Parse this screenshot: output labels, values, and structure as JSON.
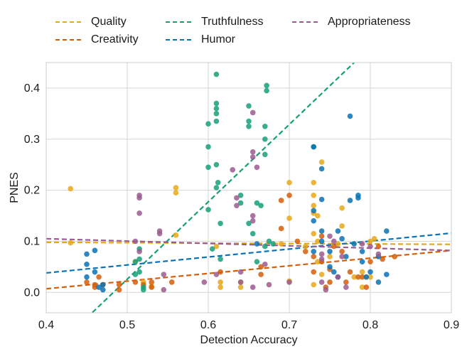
{
  "chart_data": {
    "type": "scatter",
    "xlabel": "Detection Accuracy",
    "ylabel": "PNES",
    "xlim": [
      0.4,
      0.9
    ],
    "ylim": [
      -0.04,
      0.45
    ],
    "xticks": [
      "0.4",
      "0.5",
      "0.6",
      "0.7",
      "0.8",
      "0.9"
    ],
    "xtick_values": [
      0.4,
      0.5,
      0.6,
      0.7,
      0.8,
      0.9
    ],
    "yticks": [
      "0.0",
      "0.1",
      "0.2",
      "0.3",
      "0.4"
    ],
    "ytick_values": [
      0.0,
      0.1,
      0.2,
      0.3,
      0.4
    ],
    "grid": true,
    "legend_position": "top",
    "series": [
      {
        "name": "Quality",
        "color": "#E6A817",
        "trend": [
          [
            0.4,
            0.098
          ],
          [
            0.9,
            0.094
          ]
        ],
        "points": [
          [
            0.43,
            0.203
          ],
          [
            0.43,
            0.097
          ],
          [
            0.51,
            0.06
          ],
          [
            0.52,
            0.02
          ],
          [
            0.53,
            0.012
          ],
          [
            0.56,
            0.205
          ],
          [
            0.56,
            0.195
          ],
          [
            0.56,
            0.112
          ],
          [
            0.61,
            0.09
          ],
          [
            0.615,
            0.02
          ],
          [
            0.615,
            0.01
          ],
          [
            0.64,
            0.02
          ],
          [
            0.64,
            0.01
          ],
          [
            0.69,
            0.095
          ],
          [
            0.7,
            0.215
          ],
          [
            0.7,
            0.145
          ],
          [
            0.7,
            0.022
          ],
          [
            0.72,
            0.09
          ],
          [
            0.73,
            0.115
          ],
          [
            0.73,
            0.215
          ],
          [
            0.73,
            0.19
          ],
          [
            0.73,
            0.17
          ],
          [
            0.73,
            0.155
          ],
          [
            0.735,
            0.15
          ],
          [
            0.735,
            0.1
          ],
          [
            0.735,
            0.06
          ],
          [
            0.74,
            0.255
          ],
          [
            0.74,
            0.035
          ],
          [
            0.75,
            0.07
          ],
          [
            0.76,
            0.095
          ],
          [
            0.765,
            0.165
          ],
          [
            0.765,
            0.13
          ],
          [
            0.78,
            0.03
          ],
          [
            0.79,
            0.04
          ],
          [
            0.795,
            0.03
          ],
          [
            0.79,
            0.01
          ],
          [
            0.8,
            0.03
          ],
          [
            0.8,
            0.1
          ],
          [
            0.805,
            0.105
          ],
          [
            0.73,
            0.015
          ]
        ]
      },
      {
        "name": "Creativity",
        "color": "#D45E0A",
        "trend": [
          [
            0.4,
            0.007
          ],
          [
            0.9,
            0.082
          ]
        ],
        "points": [
          [
            0.45,
            0.02
          ],
          [
            0.46,
            0.015
          ],
          [
            0.46,
            0.01
          ],
          [
            0.465,
            0.03
          ],
          [
            0.47,
            0.015
          ],
          [
            0.49,
            0.015
          ],
          [
            0.49,
            0.005
          ],
          [
            0.51,
            0.02
          ],
          [
            0.52,
            0.015
          ],
          [
            0.53,
            0.02
          ],
          [
            0.53,
            0.01
          ],
          [
            0.555,
            0.02
          ],
          [
            0.615,
            0.04
          ],
          [
            0.665,
            0.05
          ],
          [
            0.665,
            0.035
          ],
          [
            0.7,
            0.19
          ],
          [
            0.69,
            0.18
          ],
          [
            0.69,
            0.125
          ],
          [
            0.71,
            0.1
          ],
          [
            0.72,
            0.08
          ],
          [
            0.73,
            0.07
          ],
          [
            0.73,
            0.04
          ],
          [
            0.74,
            0.11
          ],
          [
            0.74,
            0.06
          ],
          [
            0.745,
            0.01
          ],
          [
            0.75,
            0.02
          ],
          [
            0.755,
            0.09
          ],
          [
            0.75,
            0.045
          ],
          [
            0.76,
            0.03
          ],
          [
            0.765,
            0.08
          ],
          [
            0.77,
            0.02
          ],
          [
            0.775,
            0.04
          ],
          [
            0.785,
            0.03
          ],
          [
            0.79,
            0.03
          ],
          [
            0.795,
            0.01
          ],
          [
            0.8,
            0.06
          ],
          [
            0.81,
            0.09
          ],
          [
            0.815,
            0.065
          ],
          [
            0.83,
            0.07
          ]
        ]
      },
      {
        "name": "Truthfulness",
        "color": "#15A07A",
        "trend": [
          [
            0.45,
            -0.05
          ],
          [
            0.78,
            0.45
          ]
        ],
        "points": [
          [
            0.51,
            0.06
          ],
          [
            0.51,
            0.035
          ],
          [
            0.515,
            0.085
          ],
          [
            0.515,
            0.065
          ],
          [
            0.515,
            0.04
          ],
          [
            0.52,
            0.01
          ],
          [
            0.52,
            0.005
          ],
          [
            0.6,
            0.285
          ],
          [
            0.6,
            0.245
          ],
          [
            0.6,
            0.162
          ],
          [
            0.6,
            0.33
          ],
          [
            0.605,
            0.085
          ],
          [
            0.61,
            0.25
          ],
          [
            0.61,
            0.205
          ],
          [
            0.61,
            0.35
          ],
          [
            0.61,
            0.335
          ],
          [
            0.61,
            0.36
          ],
          [
            0.61,
            0.37
          ],
          [
            0.61,
            0.427
          ],
          [
            0.612,
            0.215
          ],
          [
            0.615,
            0.135
          ],
          [
            0.615,
            0.065
          ],
          [
            0.64,
            0.19
          ],
          [
            0.64,
            0.175
          ],
          [
            0.65,
            0.365
          ],
          [
            0.65,
            0.335
          ],
          [
            0.65,
            0.325
          ],
          [
            0.66,
            0.175
          ],
          [
            0.665,
            0.17
          ],
          [
            0.67,
            0.3
          ],
          [
            0.67,
            0.27
          ],
          [
            0.67,
            0.325
          ],
          [
            0.672,
            0.405
          ],
          [
            0.672,
            0.395
          ],
          [
            0.675,
            0.1
          ],
          [
            0.68,
            0.095
          ],
          [
            0.73,
            0.285
          ],
          [
            0.65,
            0.135
          ],
          [
            0.655,
            0.115
          ],
          [
            0.67,
            0.09
          ],
          [
            0.66,
            0.06
          ]
        ]
      },
      {
        "name": "Humor",
        "color": "#0A72B5",
        "trend": [
          [
            0.4,
            0.038
          ],
          [
            0.9,
            0.116
          ]
        ],
        "points": [
          [
            0.45,
            0.075
          ],
          [
            0.45,
            0.055
          ],
          [
            0.45,
            0.03
          ],
          [
            0.46,
            0.082
          ],
          [
            0.46,
            0.04
          ],
          [
            0.465,
            0.01
          ],
          [
            0.47,
            0.005
          ],
          [
            0.47,
            0.015
          ],
          [
            0.66,
            0.095
          ],
          [
            0.73,
            0.285
          ],
          [
            0.73,
            0.16
          ],
          [
            0.73,
            0.14
          ],
          [
            0.73,
            0.08
          ],
          [
            0.74,
            0.242
          ],
          [
            0.74,
            0.182
          ],
          [
            0.74,
            0.12
          ],
          [
            0.74,
            0.1
          ],
          [
            0.75,
            0.08
          ],
          [
            0.75,
            0.05
          ],
          [
            0.755,
            0.04
          ],
          [
            0.76,
            0.03
          ],
          [
            0.76,
            0.12
          ],
          [
            0.765,
            0.105
          ],
          [
            0.77,
            0.07
          ],
          [
            0.775,
            0.345
          ],
          [
            0.775,
            0.18
          ],
          [
            0.78,
            0.095
          ],
          [
            0.785,
            0.19
          ],
          [
            0.785,
            0.185
          ],
          [
            0.79,
            0.08
          ],
          [
            0.79,
            0.06
          ],
          [
            0.795,
            0.03
          ],
          [
            0.8,
            0.04
          ],
          [
            0.81,
            0.07
          ],
          [
            0.81,
            0.02
          ],
          [
            0.82,
            0.12
          ],
          [
            0.82,
            0.035
          ]
        ]
      },
      {
        "name": "Appropriateness",
        "color": "#9B5B8F",
        "trend": [
          [
            0.4,
            0.105
          ],
          [
            0.9,
            0.082
          ]
        ],
        "points": [
          [
            0.51,
            0.1
          ],
          [
            0.515,
            0.19
          ],
          [
            0.515,
            0.185
          ],
          [
            0.515,
            0.155
          ],
          [
            0.515,
            0.08
          ],
          [
            0.54,
            0.115
          ],
          [
            0.54,
            0.12
          ],
          [
            0.545,
            0.035
          ],
          [
            0.545,
            0.005
          ],
          [
            0.595,
            0.02
          ],
          [
            0.61,
            0.035
          ],
          [
            0.63,
            0.24
          ],
          [
            0.635,
            0.185
          ],
          [
            0.635,
            0.17
          ],
          [
            0.64,
            0.04
          ],
          [
            0.64,
            0.02
          ],
          [
            0.655,
            0.352
          ],
          [
            0.655,
            0.275
          ],
          [
            0.655,
            0.265
          ],
          [
            0.655,
            0.15
          ],
          [
            0.655,
            0.14
          ],
          [
            0.655,
            0.01
          ],
          [
            0.66,
            0.245
          ],
          [
            0.67,
            0.055
          ],
          [
            0.675,
            0.015
          ],
          [
            0.7,
            0.02
          ],
          [
            0.74,
            0.075
          ],
          [
            0.74,
            0.065
          ],
          [
            0.74,
            0.02
          ],
          [
            0.745,
            0.005
          ],
          [
            0.75,
            0.11
          ],
          [
            0.755,
            0.1
          ],
          [
            0.76,
            0.03
          ],
          [
            0.765,
            0.07
          ],
          [
            0.77,
            0.01
          ],
          [
            0.79,
            0.095
          ],
          [
            0.8,
            0.09
          ],
          [
            0.81,
            0.075
          ]
        ]
      }
    ]
  }
}
